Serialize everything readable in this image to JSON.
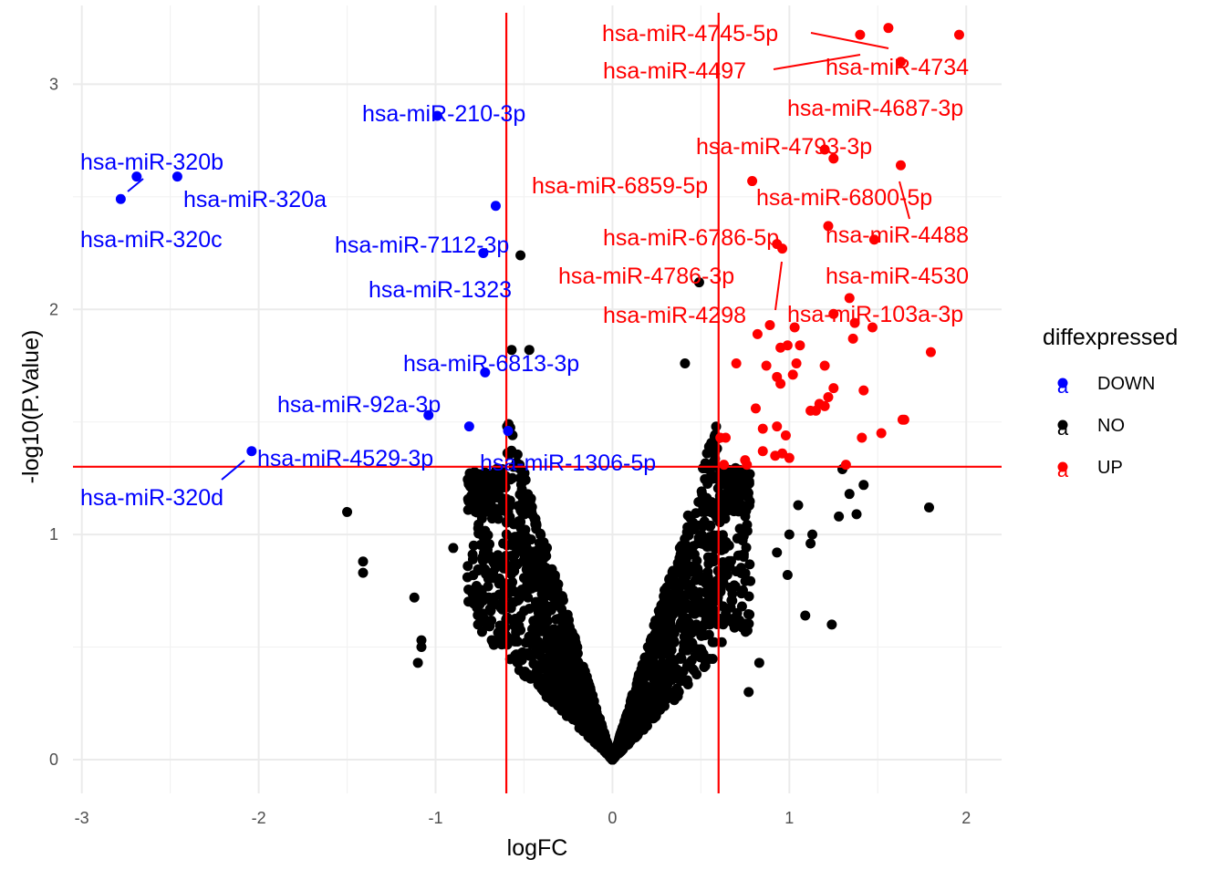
{
  "chart_data": {
    "type": "scatter",
    "title": "",
    "xlabel": "logFC",
    "ylabel": "-log10(P.Value)",
    "xlim": [
      -3.05,
      2.2
    ],
    "ylim": [
      -0.15,
      3.35
    ],
    "x_ticks": [
      -3,
      -2,
      -1,
      0,
      1,
      2
    ],
    "x_tick_labels": [
      "-3",
      "-2",
      "-1",
      "0",
      "1",
      "2"
    ],
    "y_ticks": [
      0,
      1,
      2,
      3
    ],
    "y_tick_labels": [
      "0",
      "1",
      "2",
      "3"
    ],
    "grid": true,
    "thresholds": {
      "logFC": [
        -0.6,
        0.6
      ],
      "neg_log10_p": 1.301
    },
    "legend": {
      "title": "diffexpressed",
      "position": "right",
      "entries": [
        {
          "label": "DOWN",
          "color": "#0000ff"
        },
        {
          "label": "NO",
          "color": "#000000"
        },
        {
          "label": "UP",
          "color": "#ff0000"
        }
      ]
    },
    "series": [
      {
        "name": "DOWN",
        "color": "#0000ff",
        "points": [
          {
            "x": -2.78,
            "y": 2.49,
            "label": "hsa-miR-320c"
          },
          {
            "x": -2.69,
            "y": 2.59,
            "label": "hsa-miR-320b"
          },
          {
            "x": -2.46,
            "y": 2.59,
            "label": "hsa-miR-320a"
          },
          {
            "x": -2.04,
            "y": 1.37,
            "label": "hsa-miR-320d"
          },
          {
            "x": -0.99,
            "y": 2.86,
            "label": "hsa-miR-210-3p"
          },
          {
            "x": -0.66,
            "y": 2.46,
            "label": "hsa-miR-7112-3p"
          },
          {
            "x": -0.73,
            "y": 2.25,
            "label": "hsa-miR-1323"
          },
          {
            "x": -0.72,
            "y": 1.72,
            "label": "hsa-miR-6813-3p"
          },
          {
            "x": -1.04,
            "y": 1.53,
            "label": "hsa-miR-92a-3p"
          },
          {
            "x": -0.81,
            "y": 1.48,
            "label": "hsa-miR-4529-3p"
          },
          {
            "x": -0.59,
            "y": 1.46,
            "label": "hsa-miR-1306-5p"
          }
        ]
      },
      {
        "name": "UP",
        "color": "#ff0000",
        "points": [
          {
            "x": 1.56,
            "y": 3.25,
            "label": "hsa-miR-4745-5p"
          },
          {
            "x": 1.4,
            "y": 3.22,
            "label": "hsa-miR-4497"
          },
          {
            "x": 1.96,
            "y": 3.22,
            "label": "hsa-miR-4734"
          },
          {
            "x": 1.63,
            "y": 3.1,
            "label": "hsa-miR-4687-3p"
          },
          {
            "x": 1.2,
            "y": 2.71,
            "label": "hsa-miR-4793-3p"
          },
          {
            "x": 0.79,
            "y": 2.57,
            "label": "hsa-miR-6859-5p"
          },
          {
            "x": 1.63,
            "y": 2.64,
            "label": "hsa-miR-6800-5p"
          },
          {
            "x": 1.22,
            "y": 2.37,
            "label": "hsa-miR-6786-5p"
          },
          {
            "x": 1.48,
            "y": 2.31,
            "label": "hsa-miR-4488"
          },
          {
            "x": 0.93,
            "y": 2.29,
            "label": "hsa-miR-4786-3p"
          },
          {
            "x": 0.96,
            "y": 2.27,
            "label": "hsa-miR-4298"
          },
          {
            "x": 1.34,
            "y": 2.05,
            "label": "hsa-miR-4530"
          },
          {
            "x": 1.25,
            "y": 1.98,
            "label": "hsa-miR-103a-3p"
          },
          {
            "x": 1.25,
            "y": 2.67
          },
          {
            "x": 0.82,
            "y": 1.89
          },
          {
            "x": 0.89,
            "y": 1.93
          },
          {
            "x": 1.03,
            "y": 1.92
          },
          {
            "x": 1.37,
            "y": 1.94
          },
          {
            "x": 1.47,
            "y": 1.92
          },
          {
            "x": 1.36,
            "y": 1.87
          },
          {
            "x": 0.99,
            "y": 1.84
          },
          {
            "x": 0.95,
            "y": 1.83
          },
          {
            "x": 1.06,
            "y": 1.84
          },
          {
            "x": 1.8,
            "y": 1.81
          },
          {
            "x": 0.7,
            "y": 1.76
          },
          {
            "x": 0.87,
            "y": 1.75
          },
          {
            "x": 1.04,
            "y": 1.76
          },
          {
            "x": 1.2,
            "y": 1.75
          },
          {
            "x": 0.93,
            "y": 1.7
          },
          {
            "x": 0.95,
            "y": 1.67
          },
          {
            "x": 1.02,
            "y": 1.71
          },
          {
            "x": 1.25,
            "y": 1.65
          },
          {
            "x": 1.42,
            "y": 1.64
          },
          {
            "x": 1.22,
            "y": 1.61
          },
          {
            "x": 1.17,
            "y": 1.58
          },
          {
            "x": 1.2,
            "y": 1.57
          },
          {
            "x": 1.12,
            "y": 1.55
          },
          {
            "x": 1.15,
            "y": 1.55
          },
          {
            "x": 0.81,
            "y": 1.56
          },
          {
            "x": 1.65,
            "y": 1.51
          },
          {
            "x": 1.64,
            "y": 1.51
          },
          {
            "x": 0.85,
            "y": 1.47
          },
          {
            "x": 0.93,
            "y": 1.48
          },
          {
            "x": 0.61,
            "y": 1.43
          },
          {
            "x": 0.64,
            "y": 1.43
          },
          {
            "x": 0.98,
            "y": 1.44
          },
          {
            "x": 1.52,
            "y": 1.45
          },
          {
            "x": 1.41,
            "y": 1.43
          },
          {
            "x": 0.85,
            "y": 1.37
          },
          {
            "x": 0.96,
            "y": 1.36
          },
          {
            "x": 1.0,
            "y": 1.34
          },
          {
            "x": 0.75,
            "y": 1.33
          },
          {
            "x": 0.76,
            "y": 1.31
          },
          {
            "x": 0.63,
            "y": 1.31
          },
          {
            "x": 0.92,
            "y": 1.35
          },
          {
            "x": 1.32,
            "y": 1.31
          }
        ]
      }
    ]
  },
  "labels": {
    "down": {
      "l320b": "hsa-miR-320b",
      "l320a": "hsa-miR-320a",
      "l320c": "hsa-miR-320c",
      "l320d": "hsa-miR-320d",
      "l210": "hsa-miR-210-3p",
      "l7112": "hsa-miR-7112-3p",
      "l1323": "hsa-miR-1323",
      "l6813": "hsa-miR-6813-3p",
      "l92a": "hsa-miR-92a-3p",
      "l4529": "hsa-miR-4529-3p",
      "l1306": "hsa-miR-1306-5p"
    },
    "up": {
      "l4745": "hsa-miR-4745-5p",
      "l4497": "hsa-miR-4497",
      "l4734": "hsa-miR-4734",
      "l4687": "hsa-miR-4687-3p",
      "l4793": "hsa-miR-4793-3p",
      "l6859": "hsa-miR-6859-5p",
      "l6800": "hsa-miR-6800-5p",
      "l6786": "hsa-miR-6786-5p",
      "l4488": "hsa-miR-4488",
      "l4786": "hsa-miR-4786-3p",
      "l4530": "hsa-miR-4530",
      "l4298": "hsa-miR-4298",
      "l103a": "hsa-miR-103a-3p"
    }
  },
  "legend_key_glyph": "a"
}
